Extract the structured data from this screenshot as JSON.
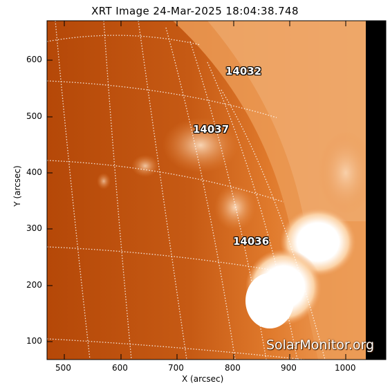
{
  "title": "XRT Image 24-Mar-2025 18:04:38.748",
  "xlabel": "X (arcsec)",
  "ylabel": "Y (arcsec)",
  "x_ticks": [
    "500",
    "600",
    "700",
    "800",
    "900",
    "1000"
  ],
  "y_ticks": [
    "600",
    "500",
    "400",
    "300",
    "200",
    "100"
  ],
  "active_regions": [
    {
      "label": "14032",
      "x_arcsec": 800,
      "y_arcsec": 585
    },
    {
      "label": "14037",
      "x_arcsec": 750,
      "y_arcsec": 485
    },
    {
      "label": "14036",
      "x_arcsec": 820,
      "y_arcsec": 280
    }
  ],
  "watermark": "SolarMonitor.org",
  "colors": {
    "disk_dark": "#b84a0a",
    "disk_mid": "#dd7a2a",
    "corona": "#f0a060",
    "bright": "#ffffff",
    "off_edge": "#000000"
  }
}
